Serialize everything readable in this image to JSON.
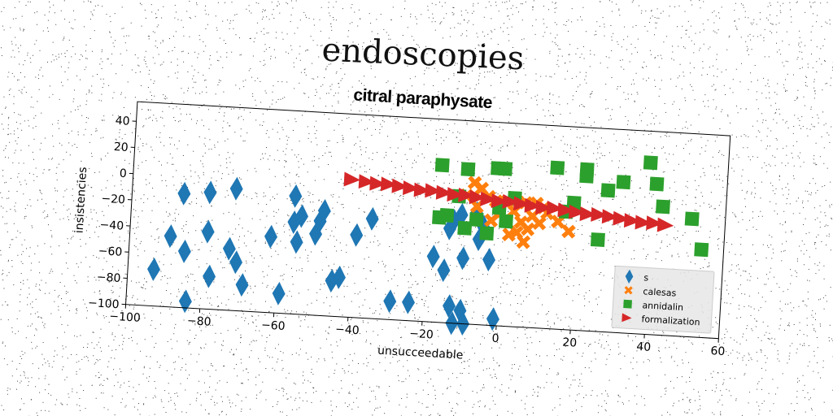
{
  "suptitle": "endoscopies",
  "chart_data": {
    "type": "scatter",
    "title": "citral paraphysate",
    "xlabel": "unsucceedable",
    "ylabel": "insistencies",
    "xlim": [
      -100,
      60
    ],
    "ylim": [
      -100,
      55
    ],
    "xticks": [
      -100,
      -80,
      -60,
      -40,
      -20,
      0,
      20,
      40,
      60
    ],
    "yticks": [
      -100,
      -80,
      -60,
      -40,
      -20,
      0,
      20,
      40
    ],
    "grid": false,
    "legend_position": "lower-right",
    "series": [
      {
        "name": "s",
        "marker": "diamond",
        "color": "#1f77b4",
        "points": [
          [
            -93,
            -72
          ],
          [
            -89,
            -46
          ],
          [
            -86,
            -13
          ],
          [
            -85,
            -57
          ],
          [
            -84,
            -95
          ],
          [
            -79,
            -11
          ],
          [
            -79,
            -41
          ],
          [
            -78,
            -75
          ],
          [
            -73,
            -53
          ],
          [
            -72,
            -7
          ],
          [
            -71,
            -63
          ],
          [
            -69,
            -80
          ],
          [
            -62,
            -42
          ],
          [
            -59,
            -85
          ],
          [
            -56,
            -10
          ],
          [
            -56,
            -30
          ],
          [
            -55,
            -45
          ],
          [
            -54,
            -25
          ],
          [
            -50,
            -38
          ],
          [
            -49,
            -28
          ],
          [
            -48,
            -20
          ],
          [
            -45,
            -73
          ],
          [
            -43,
            -70
          ],
          [
            -39,
            -37
          ],
          [
            -35,
            -24
          ],
          [
            -29,
            -86
          ],
          [
            -24,
            -86
          ],
          [
            -18,
            -50
          ],
          [
            -15,
            -60
          ],
          [
            -14,
            -28
          ],
          [
            -13,
            -87
          ],
          [
            -12,
            -100
          ],
          [
            -11,
            -17
          ],
          [
            -10,
            -50
          ],
          [
            -10,
            -90
          ],
          [
            -9,
            -100
          ],
          [
            -7,
            -15
          ],
          [
            -6,
            -35
          ],
          [
            -3,
            -50
          ],
          [
            -1,
            -95
          ],
          [
            -13,
            -22
          ],
          [
            -5,
            -25
          ]
        ]
      },
      {
        "name": "calesas",
        "marker": "x",
        "color": "#ff7f0e",
        "points": [
          [
            -8,
            8
          ],
          [
            -6,
            4
          ],
          [
            -4,
            -2
          ],
          [
            -2,
            -5
          ],
          [
            -10,
            -2
          ],
          [
            -7,
            -10
          ],
          [
            -1,
            -15
          ],
          [
            1,
            -5
          ],
          [
            3,
            -12
          ],
          [
            4,
            -28
          ],
          [
            5,
            -20
          ],
          [
            6,
            -35
          ],
          [
            7,
            -25
          ],
          [
            8,
            -15
          ],
          [
            9,
            -5
          ],
          [
            10,
            -20
          ],
          [
            12,
            -12
          ],
          [
            15,
            -18
          ],
          [
            -3,
            -20
          ],
          [
            2,
            -30
          ],
          [
            6,
            -5
          ],
          [
            11,
            -8
          ],
          [
            18,
            -25
          ]
        ]
      },
      {
        "name": "annidalin",
        "marker": "square",
        "color": "#2ca02c",
        "points": [
          [
            -17,
            20
          ],
          [
            -17,
            -20
          ],
          [
            -15,
            -18
          ],
          [
            -12,
            -3
          ],
          [
            -10,
            18
          ],
          [
            -10,
            -27
          ],
          [
            -7,
            -20
          ],
          [
            -4,
            -30
          ],
          [
            -2,
            20
          ],
          [
            0,
            20
          ],
          [
            -1,
            -10
          ],
          [
            1,
            -20
          ],
          [
            3,
            -2
          ],
          [
            14,
            23
          ],
          [
            17,
            -10
          ],
          [
            19,
            -3
          ],
          [
            22,
            23
          ],
          [
            22,
            18
          ],
          [
            26,
            -30
          ],
          [
            28,
            8
          ],
          [
            32,
            15
          ],
          [
            39,
            31
          ],
          [
            41,
            15
          ],
          [
            43,
            -2
          ],
          [
            51,
            -10
          ],
          [
            54,
            -33
          ]
        ]
      },
      {
        "name": "formalization",
        "marker": "triangle-right",
        "color": "#d62728",
        "points": [
          [
            -41,
            5
          ],
          [
            -37,
            4
          ],
          [
            -34,
            3
          ],
          [
            -31,
            3
          ],
          [
            -28,
            2
          ],
          [
            -25,
            1
          ],
          [
            -22,
            0
          ],
          [
            -19,
            0
          ],
          [
            -16,
            -1
          ],
          [
            -13,
            -2
          ],
          [
            -10,
            -2
          ],
          [
            -7,
            -3
          ],
          [
            -4,
            -4
          ],
          [
            -1,
            -5
          ],
          [
            2,
            -5
          ],
          [
            5,
            -6
          ],
          [
            8,
            -7
          ],
          [
            11,
            -8
          ],
          [
            14,
            -8
          ],
          [
            17,
            -9
          ],
          [
            20,
            -10
          ],
          [
            23,
            -11
          ],
          [
            26,
            -11
          ],
          [
            29,
            -12
          ],
          [
            32,
            -13
          ],
          [
            35,
            -14
          ],
          [
            38,
            -15
          ],
          [
            41,
            -15
          ],
          [
            44,
            -16
          ]
        ]
      }
    ]
  }
}
